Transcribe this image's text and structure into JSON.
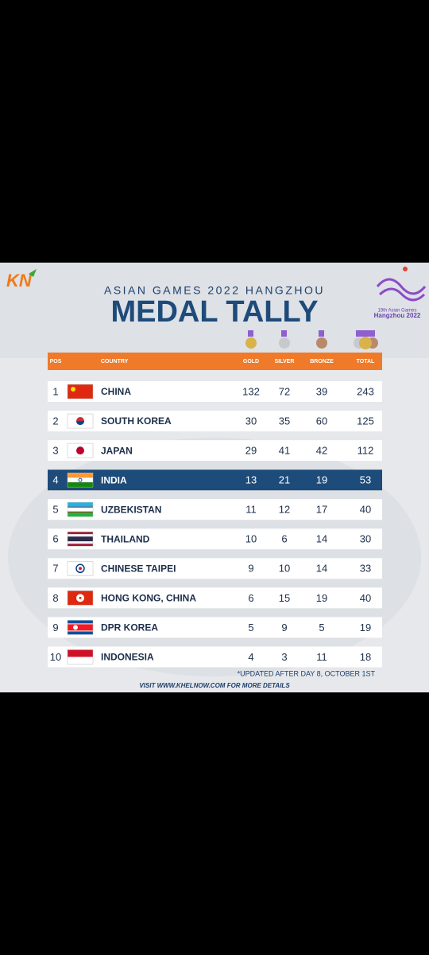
{
  "header": {
    "brand": "KN",
    "subtitle": "ASIAN GAMES 2022 HANGZHOU",
    "title": "MEDAL TALLY",
    "event_logo": [
      "19th Asian Games",
      "Hangzhou 2022"
    ]
  },
  "table": {
    "columns": [
      "POS",
      "COUNTRY",
      "GOLD",
      "SILVER",
      "BRONZE",
      "TOTAL"
    ],
    "rows": [
      [
        1,
        "CHINA",
        132,
        72,
        39,
        243
      ],
      [
        2,
        "SOUTH KOREA",
        30,
        35,
        60,
        125
      ],
      [
        3,
        "JAPAN",
        29,
        41,
        42,
        112
      ],
      [
        4,
        "INDIA",
        13,
        21,
        19,
        53
      ],
      [
        5,
        "UZBEKISTAN",
        11,
        12,
        17,
        40
      ],
      [
        6,
        "THAILAND",
        10,
        6,
        14,
        30
      ],
      [
        7,
        "CHINESE TAIPEI",
        9,
        10,
        14,
        33
      ],
      [
        8,
        "HONG KONG, CHINA",
        6,
        15,
        19,
        40
      ],
      [
        9,
        "DPR KOREA",
        5,
        9,
        5,
        19
      ],
      [
        10,
        "INDONESIA",
        4,
        3,
        11,
        18
      ]
    ]
  },
  "note": "*UPDATED AFTER DAY 8, OCTOBER 1ST",
  "footer": "VISIT WWW.KHELNOW.COM FOR MORE DETAILS"
}
